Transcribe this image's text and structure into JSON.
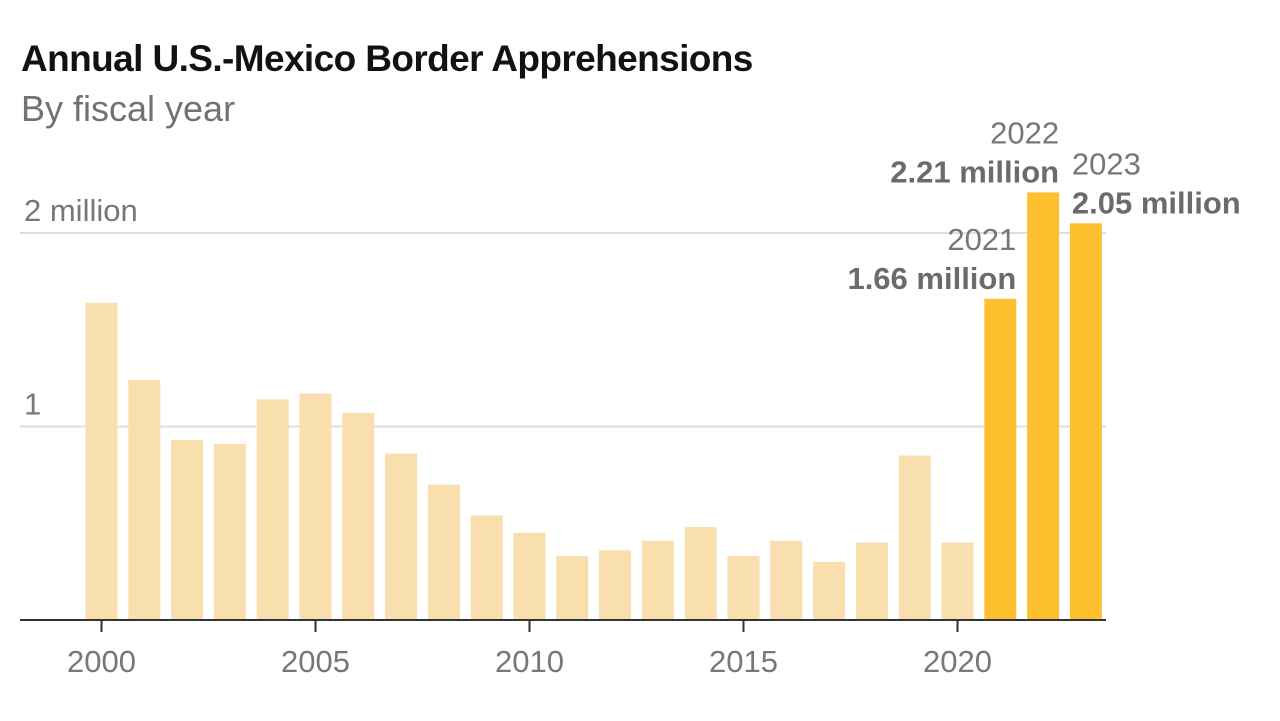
{
  "title": "Annual U.S.-Mexico Border Apprehensions",
  "subtitle": "By fiscal year",
  "colors": {
    "bar_light": "#f9deae",
    "bar_highlight": "#fdc02f",
    "gridline": "#dedede",
    "baseline": "#333333"
  },
  "chart_data": {
    "type": "bar",
    "title": "Annual U.S.-Mexico Border Apprehensions",
    "subtitle": "By fiscal year",
    "xlabel": "",
    "ylabel": "",
    "categories": [
      2000,
      2001,
      2002,
      2003,
      2004,
      2005,
      2006,
      2007,
      2008,
      2009,
      2010,
      2011,
      2012,
      2013,
      2014,
      2015,
      2016,
      2017,
      2018,
      2019,
      2020,
      2021,
      2022,
      2023
    ],
    "values": [
      1.64,
      1.24,
      0.93,
      0.91,
      1.14,
      1.17,
      1.07,
      0.86,
      0.7,
      0.54,
      0.45,
      0.33,
      0.36,
      0.41,
      0.48,
      0.33,
      0.41,
      0.3,
      0.4,
      0.85,
      0.4,
      1.66,
      2.21,
      2.05
    ],
    "units": "millions",
    "highlighted": [
      2021,
      2022,
      2023
    ],
    "ylim": [
      0,
      2.2
    ],
    "yticks": [
      {
        "value": 1,
        "label": "1"
      },
      {
        "value": 2,
        "label": "2 million"
      }
    ],
    "xticks": [
      2000,
      2005,
      2010,
      2015,
      2020
    ],
    "grid": true,
    "annotations": [
      {
        "year": 2021,
        "year_label": "2021",
        "value_label": "1.66 million",
        "align": "right"
      },
      {
        "year": 2022,
        "year_label": "2022",
        "value_label": "2.21 million",
        "align": "right"
      },
      {
        "year": 2023,
        "year_label": "2023",
        "value_label": "2.05 million",
        "align": "left"
      }
    ]
  }
}
